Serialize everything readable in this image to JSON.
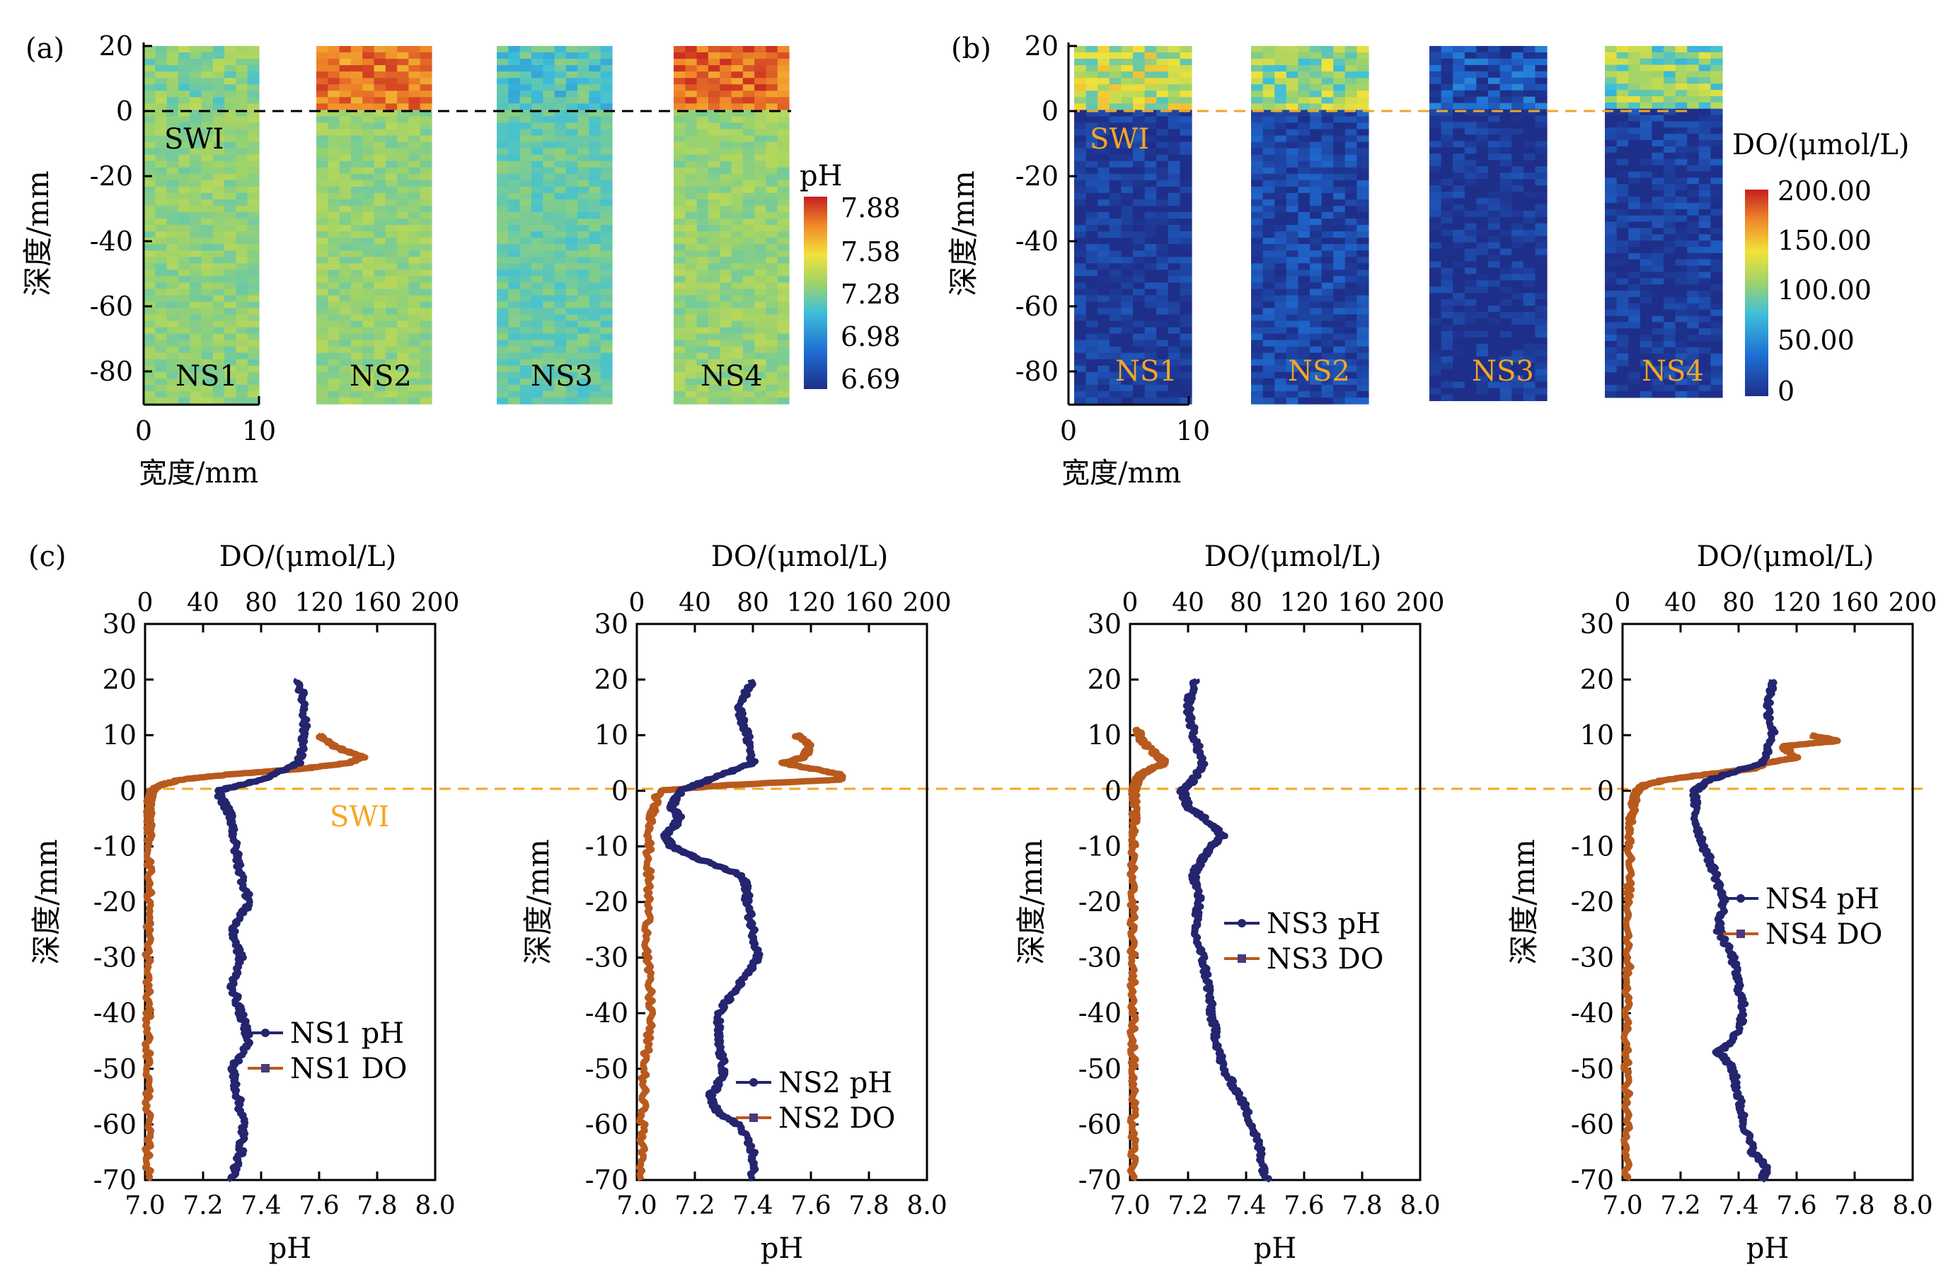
{
  "chart_data": [
    {
      "panel": "(a)",
      "type": "heatmap",
      "title": "",
      "variable_label": "pH",
      "colorbar": {
        "label": "pH",
        "ticks": [
          "7.88",
          "7.58",
          "7.28",
          "6.98",
          "6.69"
        ],
        "range": [
          6.69,
          7.88
        ]
      },
      "xlabel": "宽度/mm",
      "ylabel": "深度/mm",
      "x_ticks": [
        0,
        10
      ],
      "y_ticks": [
        20,
        0,
        -20,
        -40,
        -60,
        -80
      ],
      "xlim": [
        0,
        10
      ],
      "ylim": [
        -90,
        20
      ],
      "swi_label": "SWI",
      "swi_depth": 0,
      "samples": [
        {
          "name": "NS1",
          "bottom_depth": -90,
          "upper_mean": 7.3,
          "lower_mean": 7.32
        },
        {
          "name": "NS2",
          "bottom_depth": -90,
          "upper_mean": 7.72,
          "lower_mean": 7.33
        },
        {
          "name": "NS3",
          "bottom_depth": -90,
          "upper_mean": 7.2,
          "lower_mean": 7.25
        },
        {
          "name": "NS4",
          "bottom_depth": -90,
          "upper_mean": 7.75,
          "lower_mean": 7.33
        }
      ]
    },
    {
      "panel": "(b)",
      "type": "heatmap",
      "title": "",
      "variable_label": "DO",
      "colorbar": {
        "label": "DO/(μmol/L)",
        "ticks": [
          "200.00",
          "150.00",
          "100.00",
          "50.00",
          "0"
        ],
        "range": [
          0,
          200
        ]
      },
      "xlabel": "宽度/mm",
      "ylabel": "深度/mm",
      "x_ticks": [
        0,
        10
      ],
      "y_ticks": [
        20,
        0,
        -20,
        -40,
        -60,
        -80
      ],
      "xlim": [
        0,
        10
      ],
      "ylim": [
        -90,
        20
      ],
      "swi_label": "SWI",
      "swi_depth": 0,
      "samples": [
        {
          "name": "NS1",
          "bottom_depth": -90,
          "upper_mean": 120,
          "lower_mean": 5
        },
        {
          "name": "NS2",
          "bottom_depth": -90,
          "upper_mean": 110,
          "lower_mean": 15
        },
        {
          "name": "NS3",
          "bottom_depth": -89,
          "upper_mean": 20,
          "lower_mean": 3
        },
        {
          "name": "NS4",
          "bottom_depth": -88,
          "upper_mean": 105,
          "lower_mean": 8
        }
      ]
    },
    {
      "panel": "(c)",
      "type": "line",
      "title": "",
      "xlabel": "pH",
      "x2label": "DO/(μmol/L)",
      "ylabel": "深度/mm",
      "xlim": [
        7.0,
        8.0
      ],
      "x2lim": [
        0,
        200
      ],
      "ylim": [
        -70,
        30
      ],
      "x_ticks": [
        "7.0",
        "7.2",
        "7.4",
        "7.6",
        "7.8",
        "8.0"
      ],
      "x2_ticks": [
        "0",
        "40",
        "80",
        "120",
        "160",
        "200"
      ],
      "y_ticks": [
        30,
        20,
        10,
        0,
        -10,
        -20,
        -30,
        -40,
        -50,
        -60,
        -70
      ],
      "swi_label": "SWI",
      "swi_depth": 0,
      "subplots": [
        {
          "name": "NS1",
          "legend": [
            "NS1 pH",
            "NS1 DO"
          ],
          "ph": {
            "depth": [
              20,
              15,
              10,
              5,
              2,
              0,
              -3,
              -5,
              -10,
              -15,
              -20,
              -25,
              -30,
              -35,
              -40,
              -45,
              -50,
              -55,
              -60,
              -65,
              -70
            ],
            "value": [
              7.53,
              7.55,
              7.55,
              7.53,
              7.4,
              7.25,
              7.28,
              7.3,
              7.31,
              7.33,
              7.36,
              7.3,
              7.33,
              7.3,
              7.33,
              7.36,
              7.3,
              7.32,
              7.34,
              7.33,
              7.3
            ]
          },
          "do": {
            "depth": [
              10,
              8,
              6,
              5,
              4,
              3,
              2,
              1,
              0,
              -2,
              -5,
              -10,
              -20,
              -30,
              -40,
              -50,
              -60,
              -70
            ],
            "value": [
              120,
              130,
              150,
              140,
              110,
              60,
              25,
              10,
              5,
              3,
              3,
              3,
              3,
              2,
              2,
              2,
              2,
              2
            ]
          }
        },
        {
          "name": "NS2",
          "legend": [
            "NS2 pH",
            "NS2 DO"
          ],
          "ph": {
            "depth": [
              20,
              15,
              10,
              5,
              2,
              0,
              -3,
              -5,
              -8,
              -10,
              -12,
              -15,
              -17,
              -20,
              -25,
              -30,
              -35,
              -40,
              -45,
              -50,
              -53,
              -55,
              -58,
              -60,
              -65,
              -70
            ],
            "value": [
              7.4,
              7.35,
              7.38,
              7.4,
              7.25,
              7.15,
              7.12,
              7.15,
              7.1,
              7.12,
              7.2,
              7.35,
              7.38,
              7.38,
              7.4,
              7.42,
              7.35,
              7.28,
              7.28,
              7.3,
              7.28,
              7.25,
              7.28,
              7.35,
              7.4,
              7.4
            ]
          },
          "do": {
            "depth": [
              10,
              8,
              6,
              5,
              3,
              2,
              1,
              0,
              -5,
              -10,
              -20,
              -30,
              -40,
              -50,
              -60,
              -70
            ],
            "value": [
              110,
              120,
              115,
              100,
              140,
              140,
              60,
              15,
              10,
              8,
              8,
              7,
              10,
              5,
              4,
              3
            ]
          }
        },
        {
          "name": "NS3",
          "legend": [
            "NS3 pH",
            "NS3 DO"
          ],
          "ph": {
            "depth": [
              20,
              15,
              10,
              5,
              2,
              0,
              -3,
              -5,
              -8,
              -10,
              -12,
              -15,
              -20,
              -25,
              -30,
              -35,
              -40,
              -45,
              -50,
              -55,
              -60,
              -65,
              -70
            ],
            "value": [
              7.22,
              7.2,
              7.22,
              7.25,
              7.22,
              7.18,
              7.2,
              7.26,
              7.32,
              7.28,
              7.25,
              7.22,
              7.24,
              7.22,
              7.25,
              7.27,
              7.28,
              7.3,
              7.32,
              7.38,
              7.42,
              7.45,
              7.47
            ]
          },
          "do": {
            "depth": [
              11,
              9,
              6,
              5,
              4,
              3,
              2,
              1,
              0,
              -5,
              -10,
              -20,
              -30,
              -40,
              -50,
              -60,
              -70
            ],
            "value": [
              5,
              8,
              20,
              25,
              15,
              8,
              5,
              4,
              3,
              3,
              2,
              2,
              2,
              2,
              2,
              2,
              2
            ]
          }
        },
        {
          "name": "NS4",
          "legend": [
            "NS4 pH",
            "NS4 DO"
          ],
          "ph": {
            "depth": [
              20,
              15,
              10,
              5,
              2,
              0,
              -5,
              -10,
              -15,
              -20,
              -25,
              -30,
              -35,
              -40,
              -45,
              -47,
              -50,
              -55,
              -60,
              -65,
              -68,
              -70
            ],
            "value": [
              7.52,
              7.5,
              7.52,
              7.48,
              7.3,
              7.25,
              7.25,
              7.28,
              7.32,
              7.35,
              7.33,
              7.38,
              7.4,
              7.42,
              7.38,
              7.33,
              7.38,
              7.4,
              7.42,
              7.45,
              7.5,
              7.48
            ]
          },
          "do": {
            "depth": [
              10,
              9,
              8,
              6,
              5,
              4,
              3,
              2,
              1,
              0,
              -2,
              -5,
              -10,
              -20,
              -30,
              -40,
              -50,
              -60,
              -70
            ],
            "value": [
              130,
              150,
              110,
              120,
              100,
              90,
              60,
              30,
              15,
              10,
              8,
              6,
              5,
              4,
              4,
              3,
              3,
              3,
              3
            ]
          }
        }
      ]
    }
  ]
}
